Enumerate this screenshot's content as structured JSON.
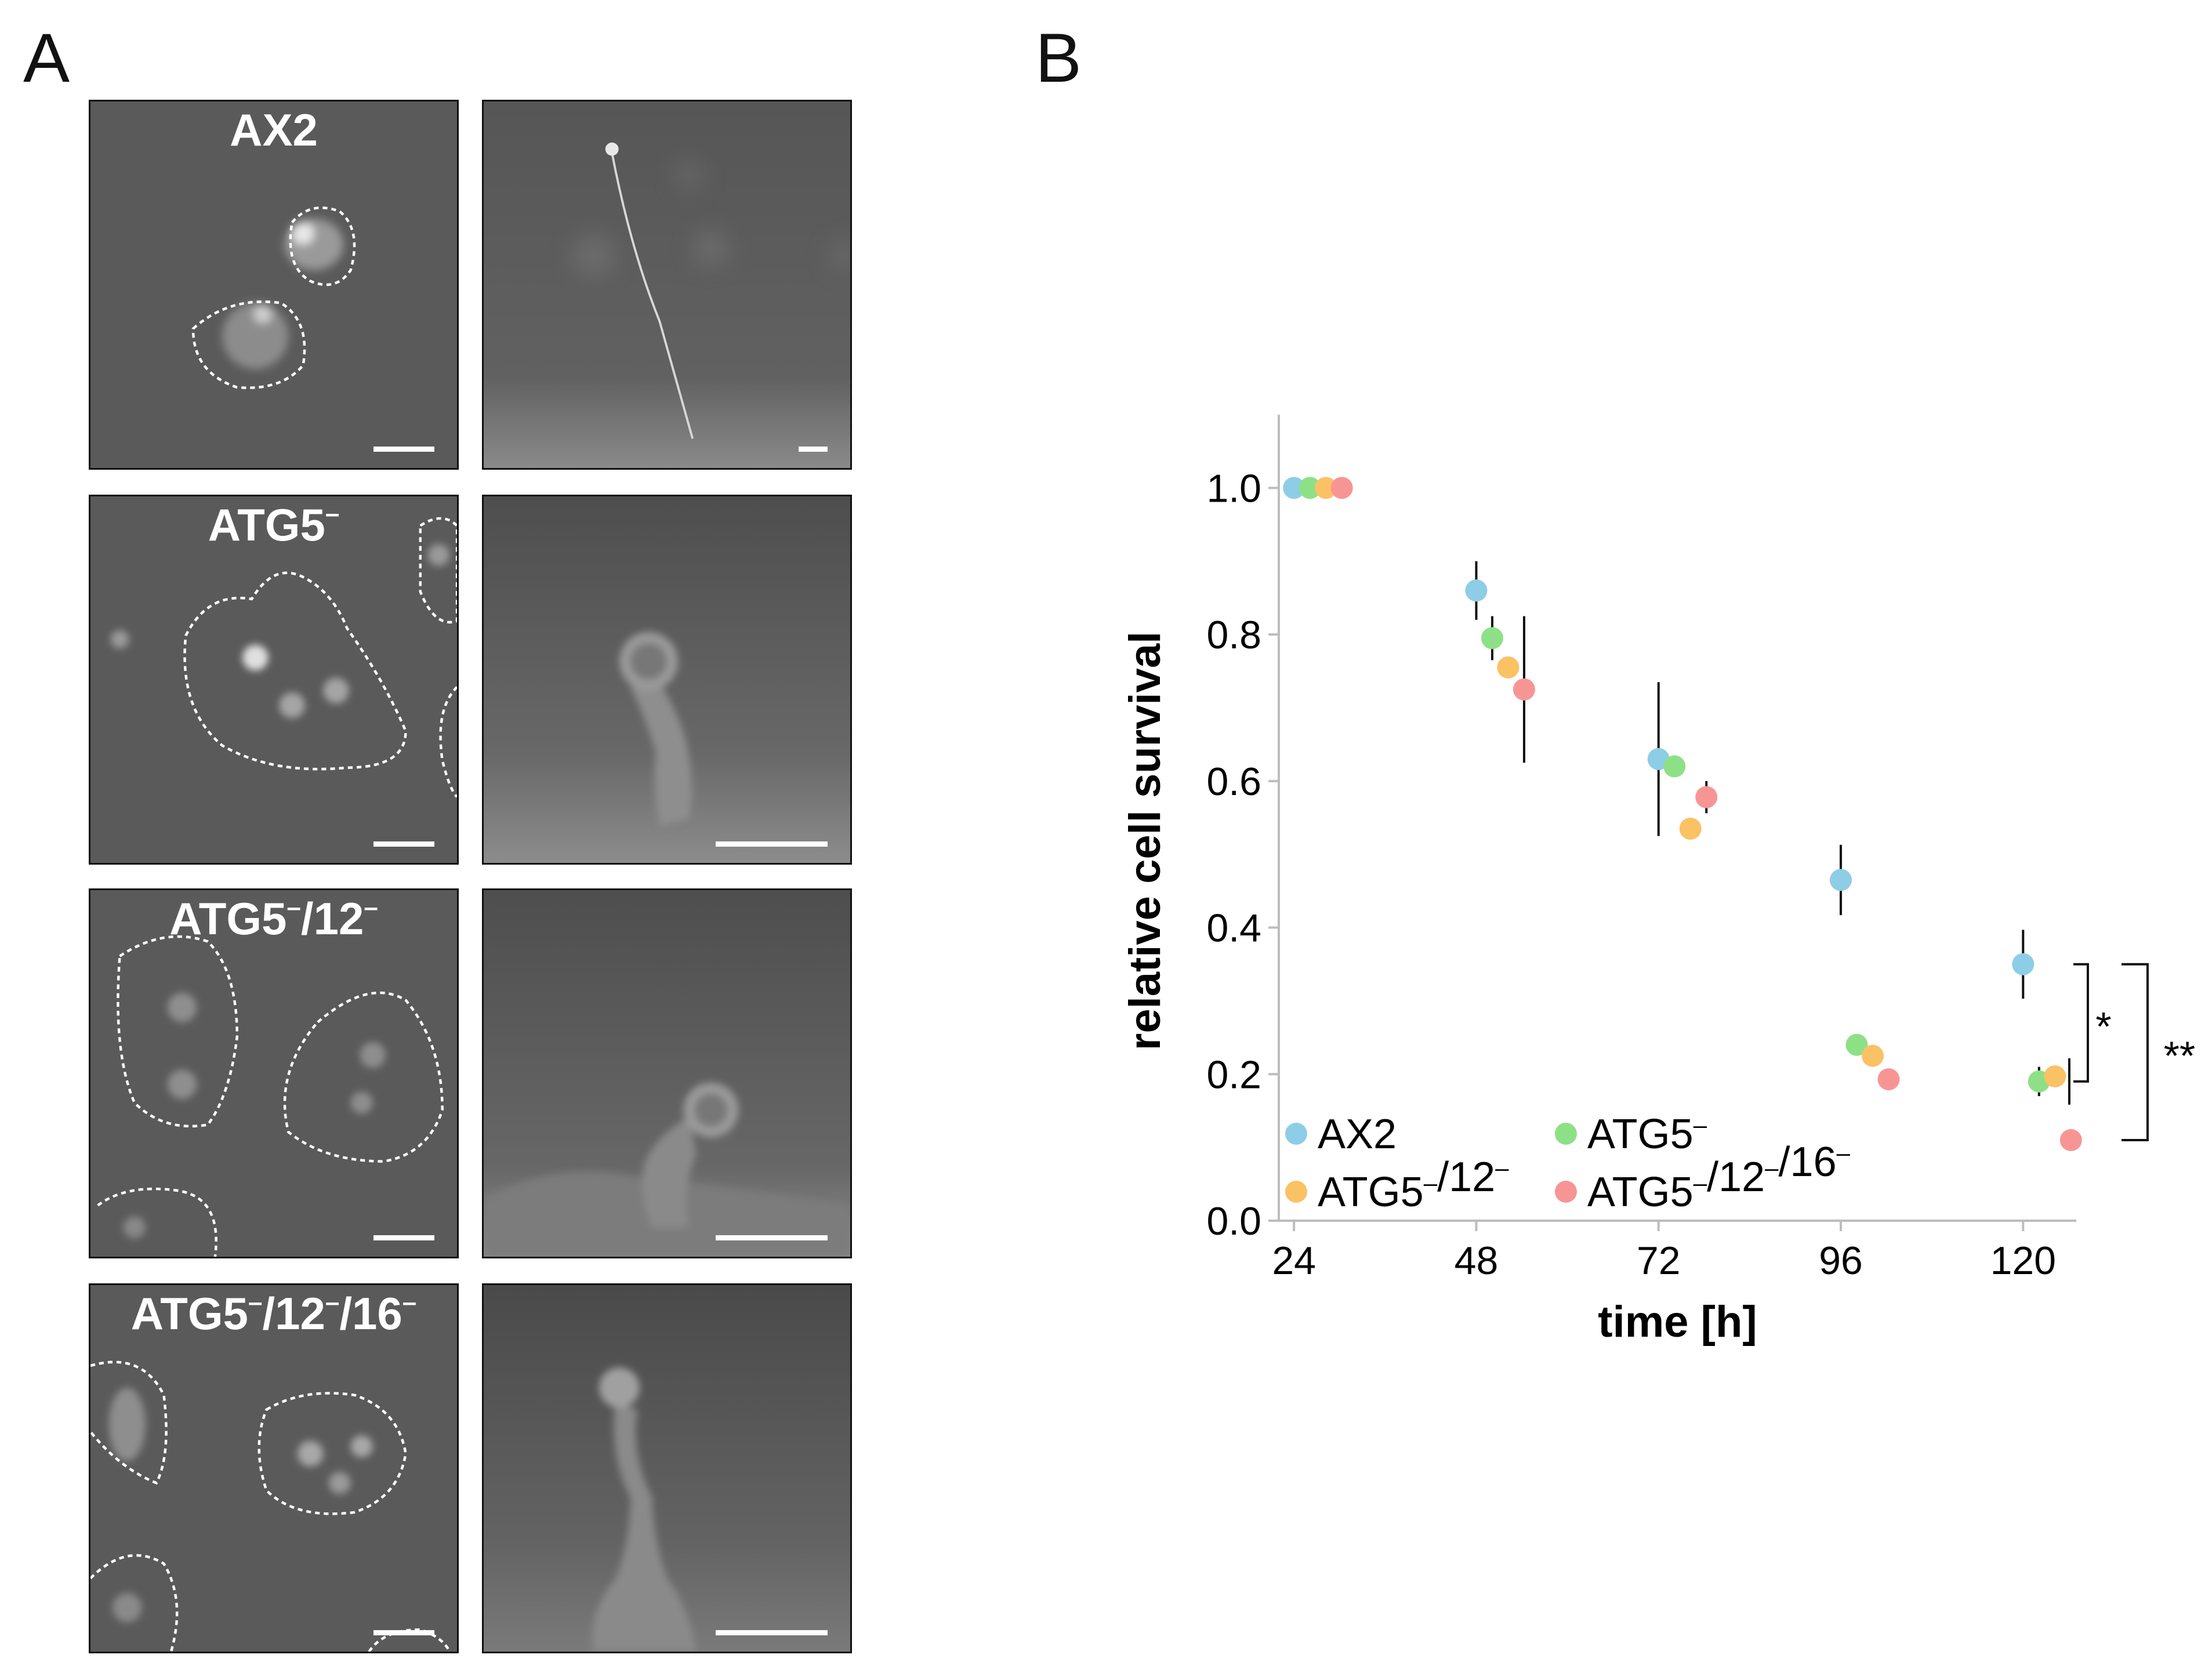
{
  "panel_labels": {
    "a": "A",
    "b": "B"
  },
  "micrographs": {
    "strain_labels": [
      {
        "base": "AX2",
        "parts": []
      },
      {
        "base": "ATG5",
        "parts": [
          "–"
        ]
      },
      {
        "base": "ATG5",
        "parts": [
          "–",
          "/12",
          "–"
        ]
      },
      {
        "base": "ATG5",
        "parts": [
          "–",
          "/12",
          "–",
          "/16",
          "–"
        ]
      }
    ]
  },
  "chart_data": {
    "type": "scatter",
    "xlabel": "time [h]",
    "ylabel": "relative cell survival",
    "x_ticks": [
      "24",
      "48",
      "72",
      "96",
      "120"
    ],
    "y_ticks": [
      "0.0",
      "0.2",
      "0.4",
      "0.6",
      "0.8",
      "1.0"
    ],
    "xlim": [
      22,
      127
    ],
    "ylim": [
      0,
      1.1
    ],
    "series": [
      {
        "name": "AX2",
        "legend_base": "AX2",
        "legend_sup": [],
        "color": "#8ecde6",
        "x": [
          24,
          48,
          72,
          96,
          120
        ],
        "y": [
          1.0,
          0.86,
          0.63,
          0.465,
          0.35
        ],
        "err": [
          0,
          0.04,
          0.105,
          0.048,
          0.047
        ]
      },
      {
        "name": "ATG5–",
        "legend_base": "ATG5",
        "legend_sup": [
          "–"
        ],
        "color": "#8ee087",
        "x": [
          24,
          48,
          72,
          96,
          120
        ],
        "y": [
          1.0,
          0.795,
          0.62,
          0.24,
          0.19
        ],
        "err": [
          0,
          0.03,
          0,
          0,
          0.02
        ]
      },
      {
        "name": "ATG5–/12–",
        "legend_base": "ATG5",
        "legend_sup": [
          "–",
          "/12",
          "–"
        ],
        "color": "#fbc165",
        "x": [
          24,
          48,
          72,
          96,
          120
        ],
        "y": [
          1.0,
          0.755,
          0.535,
          0.225,
          0.197
        ],
        "err": [
          0,
          0,
          0,
          0,
          0
        ]
      },
      {
        "name": "ATG5–/12–/16–",
        "legend_base": "ATG5",
        "legend_sup": [
          "–",
          "/12",
          "–",
          "/16",
          "–"
        ],
        "color": "#f79595",
        "x": [
          24,
          48,
          72,
          96,
          120
        ],
        "y": [
          1.0,
          0.725,
          0.578,
          0.193,
          0.11
        ],
        "err": [
          0,
          0.1,
          0.022,
          0,
          0
        ]
      }
    ],
    "x_offsets_h": [
      0,
      2.1,
      4.2,
      6.3
    ],
    "significance": [
      {
        "label": "*"
      },
      {
        "label": "**"
      }
    ],
    "grid": false,
    "legend_position": "bottom-left"
  }
}
